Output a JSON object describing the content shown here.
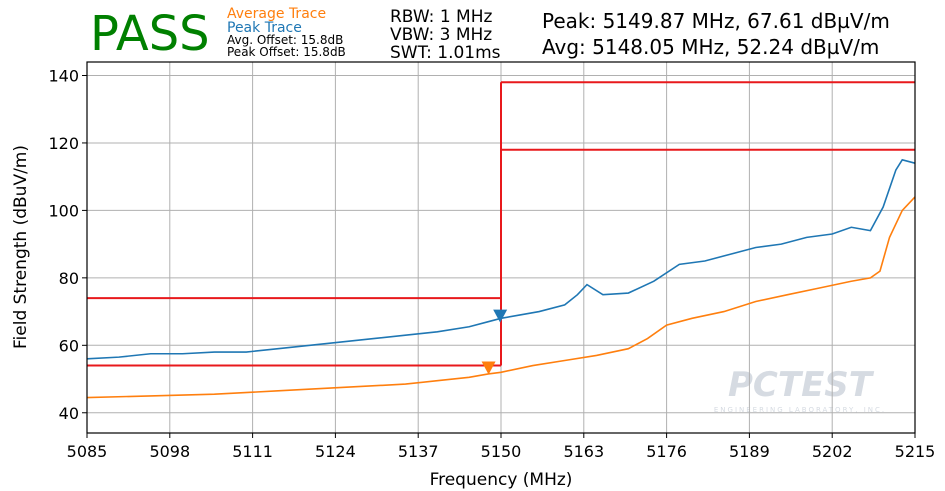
{
  "chart_data": {
    "type": "line",
    "status": "PASS",
    "status_color": "#008000",
    "notes": [
      "Avg. Offset: 15.8dB",
      "Peak Offset: 15.8dB"
    ],
    "settings": [
      "RBW: 1 MHz",
      "VBW: 3 MHz",
      "SWT: 1.01ms"
    ],
    "readouts": [
      "Peak: 5149.87 MHz, 67.61 dBµV/m",
      "Avg: 5148.05 MHz, 52.24 dBµV/m"
    ],
    "x_label": "Frequency (MHz)",
    "y_label": "Field Strength (dBuV/m)",
    "watermark": {
      "title": "PCTEST",
      "subtitle": "ENGINEERING LABORATORY, INC."
    },
    "xlim": [
      5085,
      5215
    ],
    "xticks": [
      5085,
      5098,
      5111,
      5124,
      5137,
      5150,
      5163,
      5176,
      5189,
      5202,
      5215
    ],
    "ylim": [
      34,
      144
    ],
    "yticks": [
      40,
      60,
      80,
      100,
      120,
      140
    ],
    "grid": true,
    "series": [
      {
        "name": "Average Trace",
        "color": "#ff7f0e",
        "x": [
          5085,
          5095,
          5105,
          5115,
          5125,
          5135,
          5140,
          5145,
          5148,
          5150,
          5155,
          5160,
          5165,
          5170,
          5173,
          5176,
          5180,
          5185,
          5190,
          5195,
          5200,
          5205,
          5208,
          5209.5,
          5211,
          5213,
          5215
        ],
        "values": [
          44.5,
          45,
          45.5,
          46.5,
          47.5,
          48.5,
          49.5,
          50.5,
          51.5,
          52,
          54,
          55.5,
          57,
          59,
          62,
          66,
          68,
          70,
          73,
          75,
          77,
          79,
          80,
          82,
          92,
          100,
          104
        ]
      },
      {
        "name": "Peak Trace",
        "color": "#1f77b4",
        "x": [
          5085,
          5090,
          5095,
          5100,
          5105,
          5110,
          5115,
          5120,
          5125,
          5130,
          5135,
          5140,
          5145,
          5148,
          5150,
          5153,
          5156,
          5160,
          5162,
          5163.5,
          5166,
          5170,
          5174,
          5178,
          5182,
          5186,
          5190,
          5194,
          5198,
          5202,
          5205,
          5208,
          5210,
          5212,
          5213,
          5215
        ],
        "values": [
          56,
          56.5,
          57.5,
          57.5,
          58,
          58,
          59,
          60,
          61,
          62,
          63,
          64,
          65.5,
          67,
          68,
          69,
          70,
          72,
          75,
          78,
          75,
          75.5,
          79,
          84,
          85,
          87,
          89,
          90,
          92,
          93,
          95,
          94,
          101,
          112,
          115,
          114
        ]
      }
    ],
    "markers": [
      {
        "x": 5148.05,
        "y": 52.24,
        "color": "#ff7f0e"
      },
      {
        "x": 5149.87,
        "y": 67.61,
        "color": "#1f77b4"
      }
    ],
    "limit_lines": {
      "color": "#e8191c",
      "segments": [
        {
          "x": [
            5085,
            5150
          ],
          "y": [
            74,
            74
          ]
        },
        {
          "x": [
            5085,
            5150
          ],
          "y": [
            54,
            54
          ]
        },
        {
          "x": [
            5150,
            5150
          ],
          "y": [
            54,
            138
          ]
        },
        {
          "x": [
            5150,
            5215
          ],
          "y": [
            138,
            138
          ]
        },
        {
          "x": [
            5150,
            5215
          ],
          "y": [
            118,
            118
          ]
        }
      ]
    }
  }
}
